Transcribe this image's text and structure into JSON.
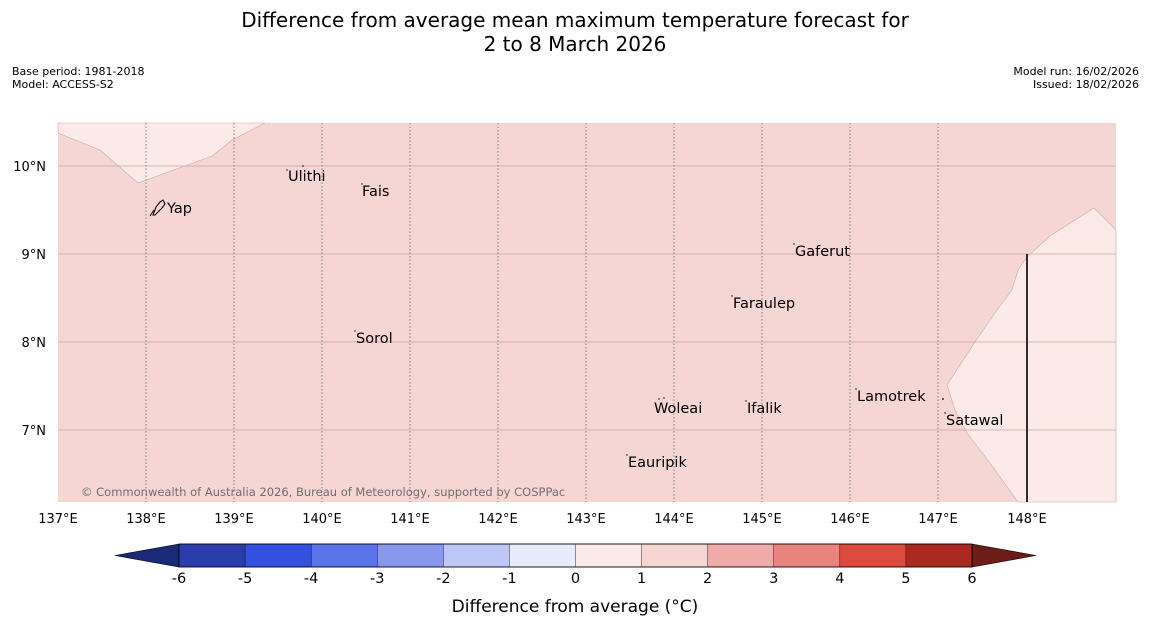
{
  "title": {
    "line1": "Difference from average mean maximum temperature forecast for",
    "line2": "2 to 8 March 2026"
  },
  "meta": {
    "base_period": "Base period: 1981-2018",
    "model": "Model: ACCESS-S2",
    "model_run": "Model run: 16/02/2026",
    "issued": "Issued: 18/02/2026"
  },
  "map": {
    "lon_range": [
      137,
      149
    ],
    "lat_range": [
      6.2,
      10.5
    ],
    "lon_ticks": [
      "137°E",
      "138°E",
      "139°E",
      "140°E",
      "141°E",
      "142°E",
      "143°E",
      "144°E",
      "145°E",
      "146°E",
      "147°E",
      "148°E"
    ],
    "lat_ticks": [
      "10°N",
      "9°N",
      "8°N",
      "7°N"
    ],
    "background_color": "#f5d6d3",
    "low_anomaly_color": "#fbeae7",
    "places": [
      {
        "name": "Ulithi",
        "lon": 139.76,
        "lat": 9.94
      },
      {
        "name": "Fais",
        "lon": 140.52,
        "lat": 9.77
      },
      {
        "name": "Yap",
        "lon": 138.13,
        "lat": 9.53
      },
      {
        "name": "Gaferut",
        "lon": 145.38,
        "lat": 9.23
      },
      {
        "name": "Faraulep",
        "lon": 144.67,
        "lat": 8.48
      },
      {
        "name": "Sorol",
        "lon": 140.38,
        "lat": 8.13
      },
      {
        "name": "Lamotrek",
        "lon": 146.05,
        "lat": 7.45
      },
      {
        "name": "Woleai",
        "lon": 143.87,
        "lat": 7.32
      },
      {
        "name": "Ifalik",
        "lon": 144.85,
        "lat": 7.3
      },
      {
        "name": "Satawal",
        "lon": 147.07,
        "lat": 7.18
      },
      {
        "name": "Eauripik",
        "lon": 143.45,
        "lat": 6.7
      }
    ],
    "copyright": "© Commonwealth of Australia 2026, Bureau of Meteorology, supported by COSPPac"
  },
  "colorbar": {
    "title": "Difference from average (°C)",
    "tick_labels": [
      "-6",
      "-5",
      "-4",
      "-3",
      "-2",
      "-1",
      "0",
      "1",
      "2",
      "3",
      "4",
      "5",
      "6"
    ],
    "low_extend_color": "#1b2a78",
    "high_extend_color": "#6e1c17",
    "colors": [
      "#2a3daa",
      "#3350e0",
      "#5b74e8",
      "#8797ee",
      "#bdc6f4",
      "#e8ebfb",
      "#fbeae7",
      "#f5d6d3",
      "#eeaba7",
      "#e8847d",
      "#dc4a3d",
      "#aa2a22"
    ]
  }
}
